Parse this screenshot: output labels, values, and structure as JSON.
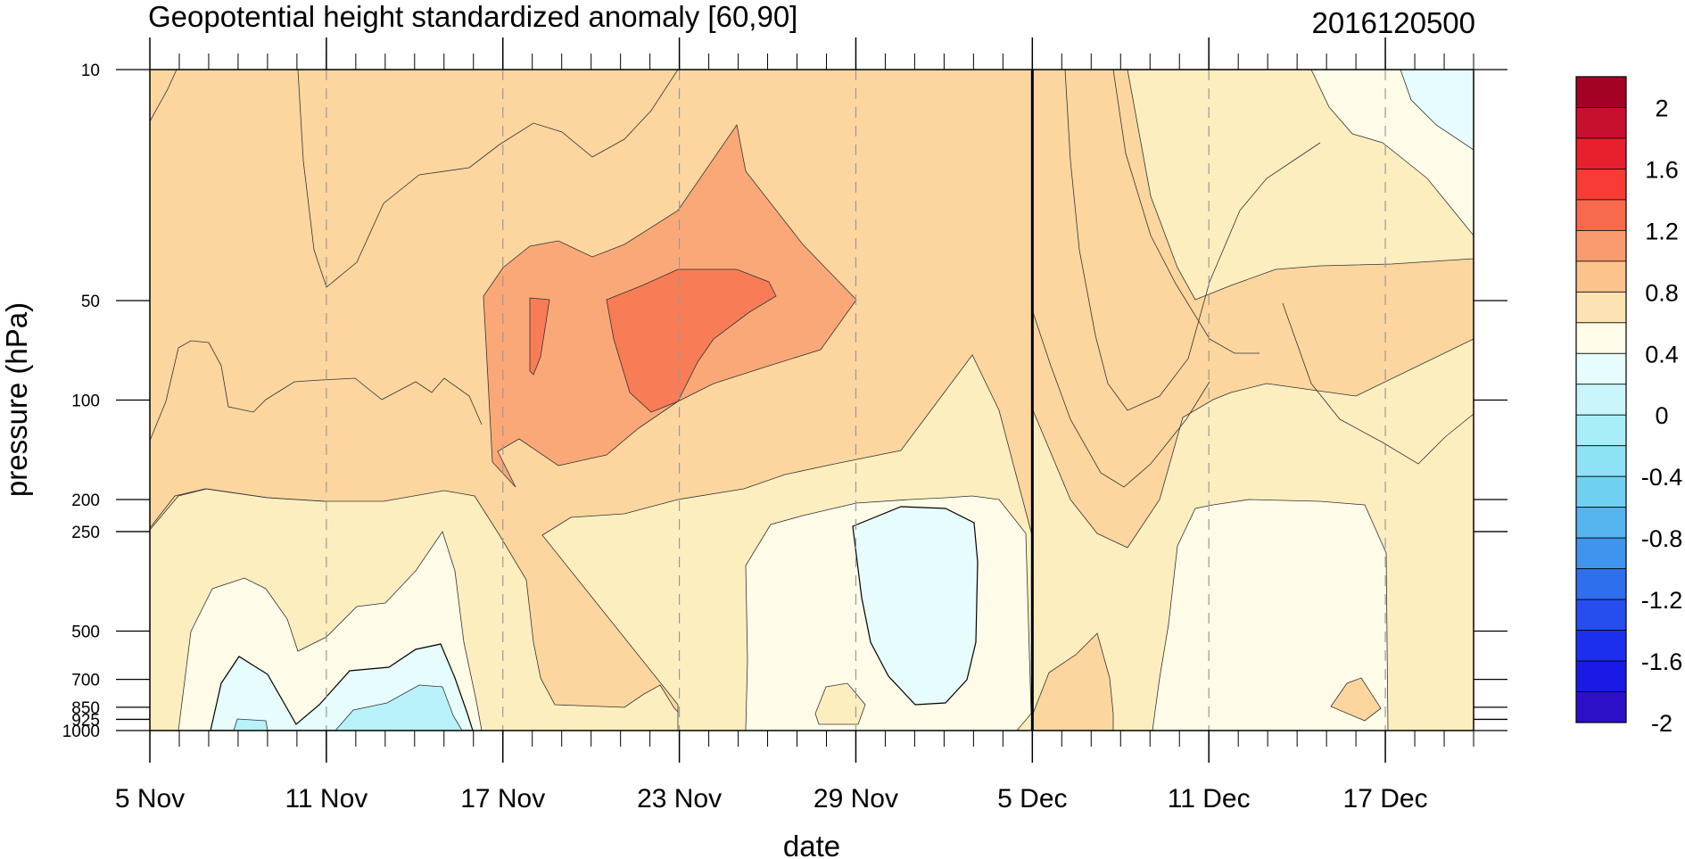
{
  "chart_data": {
    "type": "heatmap",
    "title": "Geopotential height standardized anomaly [60,90]",
    "date_code": "2016120500",
    "xlabel": "date",
    "ylabel": "pressure (hPa)",
    "y_scale": "log",
    "y_reversed": true,
    "ylim": [
      1000,
      10
    ],
    "xlim": [
      "5 Nov",
      "20 Dec"
    ],
    "x_ticks": [
      "5 Nov",
      "11 Nov",
      "17 Nov",
      "23 Nov",
      "29 Nov",
      "5 Dec",
      "11 Dec",
      "17 Dec"
    ],
    "y_ticks": [
      "10",
      "50",
      "100",
      "200",
      "250",
      "500",
      "700",
      "850",
      "925",
      "1000"
    ],
    "marked_date": "5 Dec",
    "colorbar": {
      "labels": [
        "2",
        "1.6",
        "1.2",
        "0.8",
        "0.4",
        "0",
        "-0.4",
        "-0.8",
        "-1.2",
        "-1.6",
        "-2"
      ],
      "levels": [
        2.2,
        2.0,
        1.8,
        1.6,
        1.4,
        1.2,
        1.0,
        0.8,
        0.6,
        0.4,
        0.2,
        0.0,
        -0.2,
        -0.4,
        -0.6,
        -0.8,
        -1.0,
        -1.2,
        -1.4,
        -1.6,
        -1.8,
        -2.0,
        -2.2
      ],
      "colors": [
        "#a50026",
        "#c8102e",
        "#e8202e",
        "#f63c34",
        "#f76a4b",
        "#fa9a6f",
        "#fcc38d",
        "#fde2b3",
        "#fefbe8",
        "#e6fcfd",
        "#c8f6fa",
        "#a8eef8",
        "#8de2f5",
        "#6fd0f2",
        "#56b4ee",
        "#3f94ec",
        "#2f6fed",
        "#264eef",
        "#1d2fee",
        "#1a1ae6",
        "#2c10c8"
      ]
    },
    "anomaly_regions": [
      {
        "level": "0.4 to 0.8",
        "color": "#fcd69e",
        "description": "background upper troposphere and stratosphere"
      },
      {
        "level": "0.8 to 1.2",
        "color": "#fba878",
        "description": "17 Nov - 29 Nov, 30-180 hPa"
      },
      {
        "level": "1.2 to 1.6",
        "color": "#f87c55",
        "description": "19 Nov - 26 Nov, 45-110 hPa"
      },
      {
        "level": "-0.4 to 0",
        "color": "#e6fcfd",
        "description": "30 Nov - 3 Dec, 250-800 hPa"
      },
      {
        "level": "-0.4 to -0.8",
        "color": "#b8f1f9",
        "description": "8 Nov - 15 Nov, near surface"
      }
    ]
  }
}
